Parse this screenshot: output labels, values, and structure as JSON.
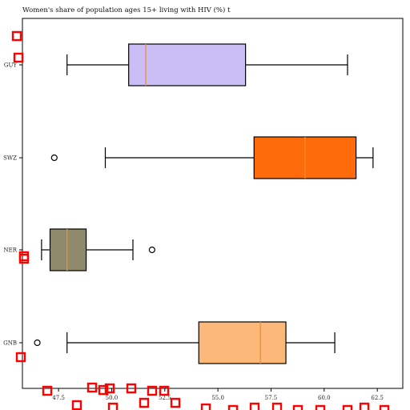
{
  "chart_data": {
    "type": "boxplot",
    "title": "Women's share of population ages 15+ living with HIV (%) t",
    "orientation": "horizontal",
    "xlim": [
      45.8,
      63.7
    ],
    "xticks": [
      "47.5",
      "50.0",
      "52.5",
      "55.0",
      "57.5",
      "60.0",
      "62.5"
    ],
    "categories": [
      "GUY",
      "SWZ",
      "NER",
      "GNB"
    ],
    "series": [
      {
        "label": "GUY",
        "whisker_low": 47.9,
        "q1": 50.8,
        "median": 51.6,
        "q3": 56.3,
        "whisker_high": 61.1,
        "outliers": [],
        "color": "#cbbdf6"
      },
      {
        "label": "SWZ",
        "whisker_low": 49.7,
        "q1": 56.7,
        "median": 59.1,
        "q3": 61.5,
        "whisker_high": 62.3,
        "outliers": [
          47.3
        ],
        "color": "#ff6a0a"
      },
      {
        "label": "NER",
        "whisker_low": 46.7,
        "q1": 47.1,
        "median": 47.9,
        "q3": 48.8,
        "whisker_high": 51.0,
        "outliers": [
          51.9
        ],
        "color": "#8f8a6b"
      },
      {
        "label": "GNB",
        "whisker_low": 47.9,
        "q1": 54.1,
        "median": 57.0,
        "q3": 58.2,
        "whisker_high": 60.5,
        "outliers": [
          46.5
        ],
        "color": "#fbb878"
      }
    ],
    "median_color": "#f28e2b",
    "grid": false
  }
}
